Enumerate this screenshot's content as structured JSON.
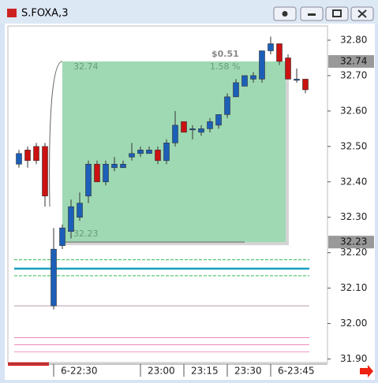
{
  "window_title": "S.FOXA,3",
  "chart_data": {
    "type": "candlestick",
    "categories": [
      null,
      null,
      null,
      null,
      "6-22:30",
      null,
      null,
      null,
      null,
      null,
      null,
      null,
      null,
      null,
      "23:00",
      null,
      null,
      null,
      null,
      "23:15",
      null,
      null,
      null,
      null,
      "23:30",
      null,
      null,
      null,
      null,
      "6-23:45",
      null,
      null,
      null,
      null
    ],
    "open": [
      32.45,
      32.49,
      32.5,
      32.5,
      32.05,
      32.22,
      32.26,
      32.3,
      32.36,
      32.45,
      32.4,
      32.44,
      32.44,
      32.47,
      32.48,
      32.48,
      32.49,
      32.46,
      32.51,
      32.57,
      32.55,
      32.54,
      32.55,
      32.56,
      32.59,
      32.64,
      32.67,
      32.69,
      32.69,
      32.77,
      32.79,
      32.75,
      32.69,
      32.69
    ],
    "high": [
      32.49,
      32.5,
      32.51,
      32.51,
      32.27,
      32.28,
      32.35,
      32.37,
      32.46,
      32.46,
      32.46,
      32.47,
      32.46,
      32.51,
      32.5,
      32.5,
      32.5,
      32.52,
      32.6,
      32.57,
      32.56,
      32.56,
      32.58,
      32.59,
      32.65,
      32.69,
      32.7,
      32.71,
      32.77,
      32.81,
      32.79,
      32.76,
      32.72,
      32.69
    ],
    "low": [
      32.44,
      32.44,
      32.45,
      32.33,
      32.04,
      32.21,
      32.24,
      32.29,
      32.34,
      32.4,
      32.39,
      32.43,
      32.44,
      32.46,
      32.47,
      32.48,
      32.45,
      32.45,
      32.5,
      32.54,
      32.52,
      32.53,
      32.54,
      32.55,
      32.58,
      32.64,
      32.67,
      32.68,
      32.68,
      32.76,
      32.73,
      32.69,
      32.68,
      32.65
    ],
    "close": [
      32.48,
      32.46,
      32.46,
      32.36,
      32.21,
      32.27,
      32.33,
      32.34,
      32.45,
      32.4,
      32.45,
      32.45,
      32.45,
      32.48,
      32.49,
      32.49,
      32.46,
      32.51,
      32.56,
      32.54,
      32.55,
      32.55,
      32.57,
      32.59,
      32.64,
      32.68,
      32.7,
      32.7,
      32.77,
      32.79,
      32.74,
      32.69,
      32.69,
      32.66
    ],
    "up_color": "#1c5fb8",
    "down_color": "#cc1111",
    "ylim": [
      31.89,
      32.84
    ],
    "yticks": [
      {
        "value": 31.9,
        "label": "31.90"
      },
      {
        "value": 32.0,
        "label": "32.00"
      },
      {
        "value": 32.1,
        "label": "32.10"
      },
      {
        "value": 32.2,
        "label": "32.20"
      },
      {
        "value": 32.3,
        "label": "32.30"
      },
      {
        "value": 32.4,
        "label": "32.40"
      },
      {
        "value": 32.5,
        "label": "32.50"
      },
      {
        "value": 32.6,
        "label": "32.60"
      },
      {
        "value": 32.7,
        "label": "32.70"
      },
      {
        "value": 32.8,
        "label": "32.80"
      }
    ],
    "levels": [
      {
        "value": 32.18,
        "color": "#33bb55",
        "style": "dashed"
      },
      {
        "value": 32.155,
        "color": "#1aa0c0",
        "style": "solid"
      },
      {
        "value": 32.135,
        "color": "#33bb55",
        "style": "dashed"
      },
      {
        "value": 32.05,
        "color": "#bb99aa",
        "style": "solid"
      },
      {
        "value": 31.96,
        "color": "#ee88bb",
        "style": "solid"
      },
      {
        "value": 31.94,
        "color": "#ee88bb",
        "style": "solid"
      },
      {
        "value": 31.92,
        "color": "#ee99cc",
        "style": "solid"
      }
    ],
    "price_markers": [
      32.74,
      32.23
    ],
    "measure": {
      "start": 32.23,
      "end": 32.74,
      "change_label": "$0.51",
      "percent_label": "1.58 %"
    }
  }
}
